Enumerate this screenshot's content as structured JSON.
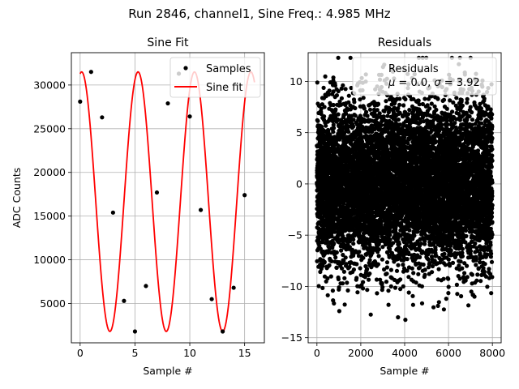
{
  "suptitle": "Run 2846, channel1, Sine Freq.: 4.985 MHz",
  "chart_data": [
    {
      "type": "line",
      "title": "Sine Fit",
      "xlabel": "Sample #",
      "ylabel": "ADC Counts",
      "xlim": [
        -0.8,
        16.8
      ],
      "ylim": [
        500,
        33700
      ],
      "xticks": [
        0,
        5,
        10,
        15
      ],
      "yticks": [
        5000,
        10000,
        15000,
        20000,
        25000,
        30000
      ],
      "grid": true,
      "legend_position": "top-right",
      "series": [
        {
          "name": "Samples",
          "kind": "scatter",
          "color": "#000000",
          "x": [
            0,
            1,
            2,
            3,
            4,
            5,
            6,
            7,
            8,
            9,
            10,
            11,
            12,
            13,
            14,
            15
          ],
          "y": [
            28100,
            31500,
            26300,
            15400,
            5300,
            1800,
            7000,
            17700,
            27900,
            31300,
            26400,
            15700,
            5500,
            1800,
            6800,
            17400
          ]
        },
        {
          "name": "Sine fit",
          "kind": "line",
          "color": "#ff0000",
          "model": {
            "offset": 16650,
            "amplitude": 14850,
            "phase_step": 1.2216,
            "phase0": 1.4,
            "x_start": 0,
            "x_end": 15.9
          }
        }
      ]
    },
    {
      "type": "scatter",
      "title": "Residuals",
      "xlabel": "Sample #",
      "ylabel": "",
      "xlim": [
        -400,
        8400
      ],
      "ylim": [
        -15.5,
        12.8
      ],
      "xticks": [
        0,
        2000,
        4000,
        6000,
        8000
      ],
      "yticks": [
        -15,
        -10,
        -5,
        0,
        5,
        10
      ],
      "grid": true,
      "legend_position": "top-right",
      "series": [
        {
          "name": "Residuals",
          "color": "#000000",
          "distribution": {
            "count": 8000,
            "x_min": 0,
            "x_max": 7999,
            "mean": 0.0,
            "sigma": 3.92
          }
        }
      ],
      "legend_stats": {
        "mu": "0.0",
        "sigma": "3.92"
      }
    }
  ]
}
